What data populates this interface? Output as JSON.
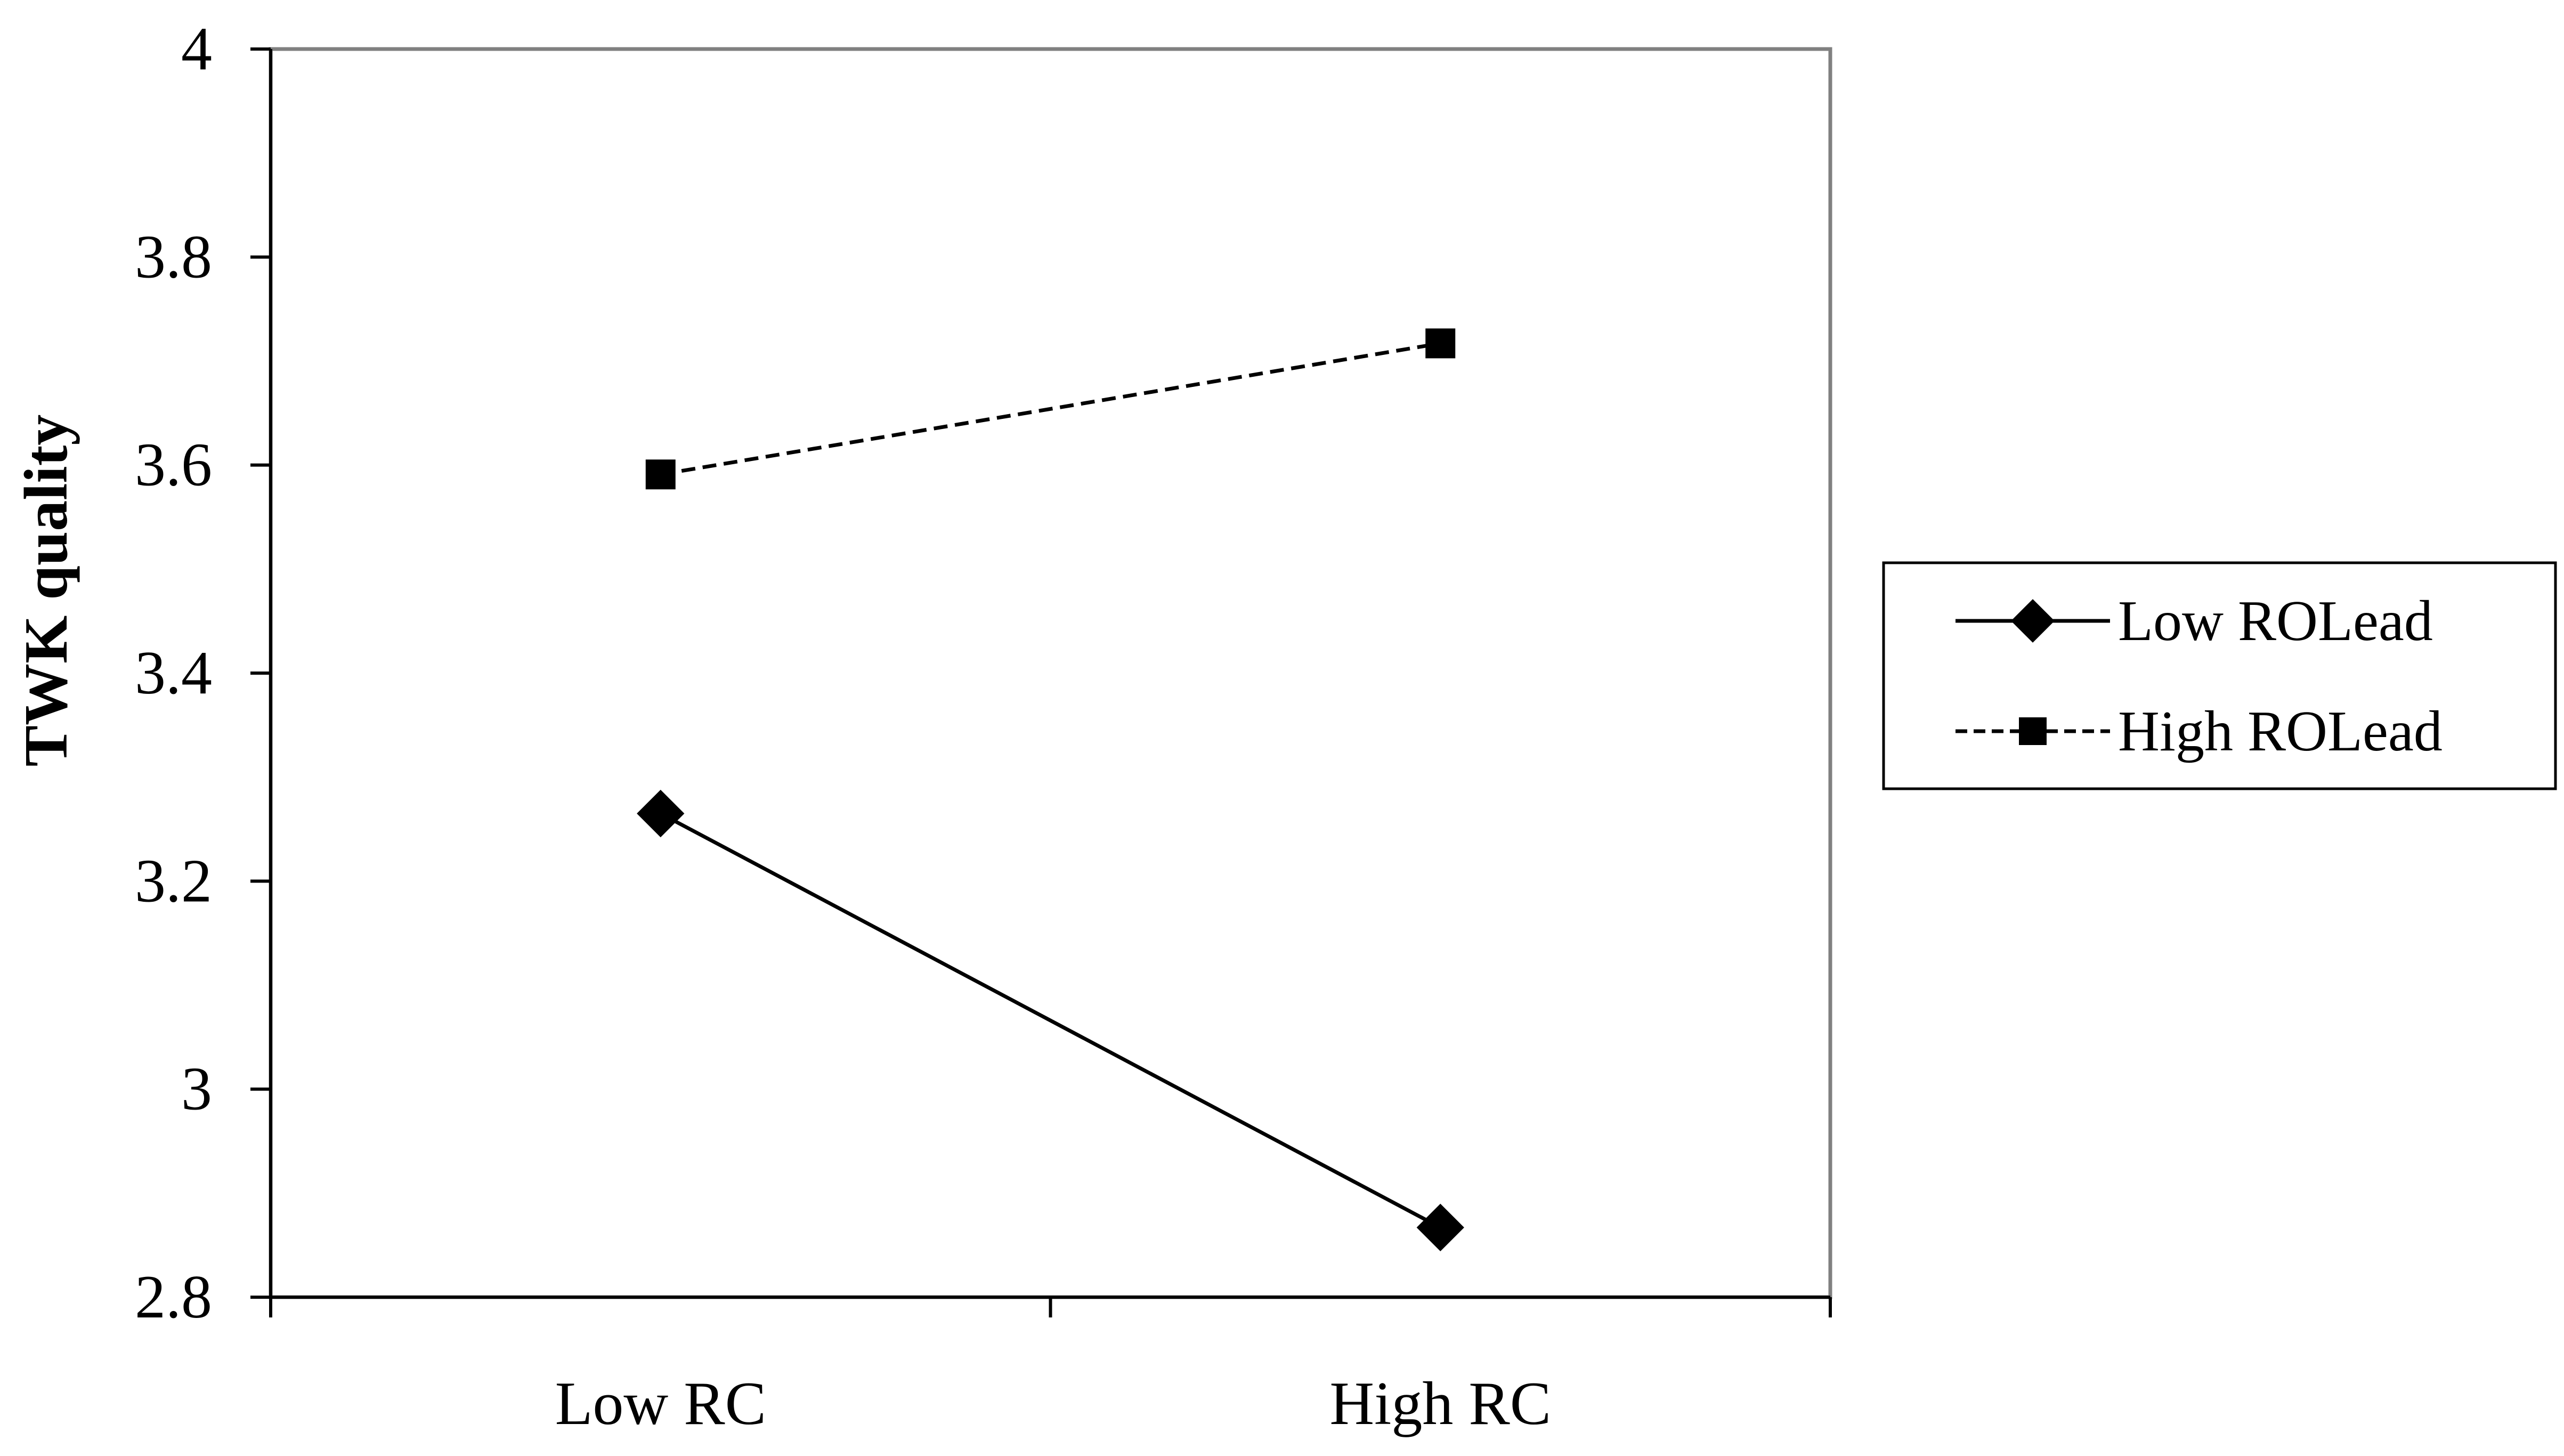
{
  "chart_data": {
    "type": "line",
    "title": "",
    "xlabel": "",
    "ylabel": "TWK quality",
    "categories": [
      "Low RC",
      "High RC"
    ],
    "ylim": [
      2.8,
      4
    ],
    "yticks": [
      2.8,
      3,
      3.2,
      3.4,
      3.6,
      3.8,
      4
    ],
    "ytick_labels": [
      "2.8",
      "3",
      "3.2",
      "3.4",
      "3.6",
      "3.8",
      "4"
    ],
    "grid": false,
    "legend_position": "right",
    "series": [
      {
        "name": "Low ROLead",
        "values": [
          3.265,
          2.867
        ],
        "marker": "diamond",
        "line_style": "solid",
        "color": "#000000"
      },
      {
        "name": "High ROLead",
        "values": [
          3.591,
          3.717
        ],
        "marker": "square",
        "line_style": "dashed",
        "color": "#000000"
      }
    ]
  }
}
